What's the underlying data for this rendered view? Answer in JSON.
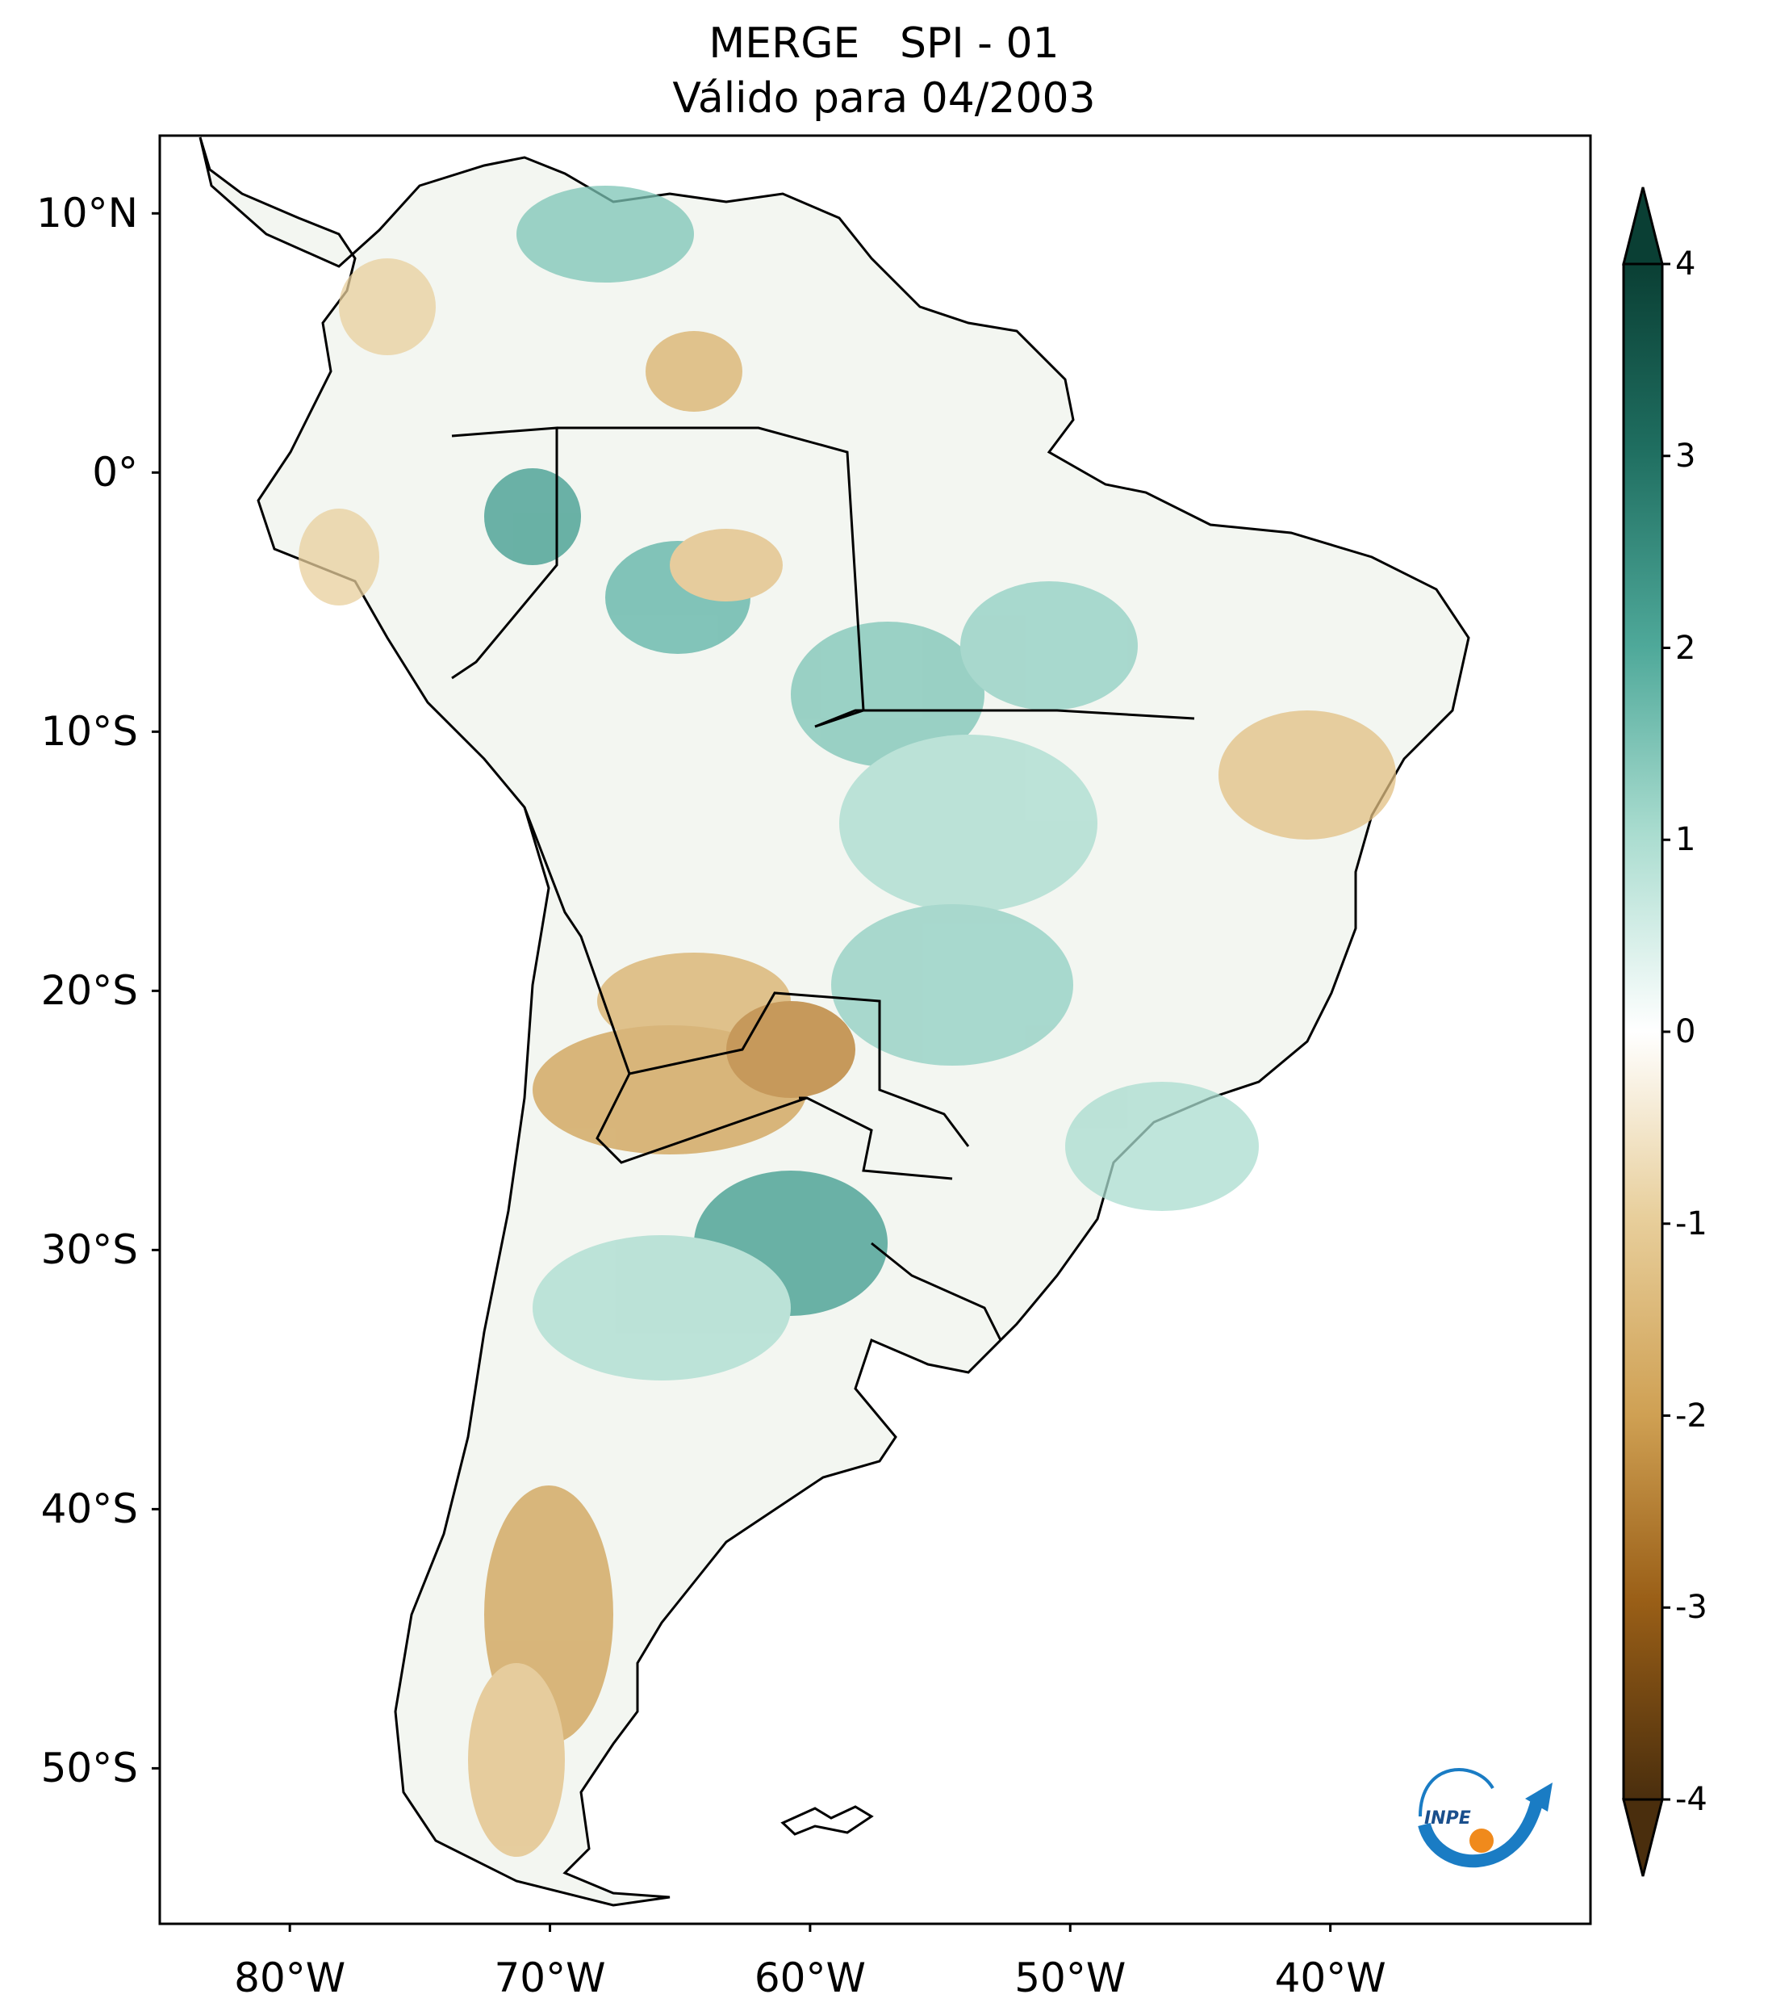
{
  "header": {
    "title_line1": "MERGE   SPI - 01",
    "title_line2": "Válido para 04/2003"
  },
  "map": {
    "extent": {
      "lon_min": -85,
      "lon_max": -30,
      "lat_min": -56,
      "lat_max": 13
    },
    "lat_labels": [
      "10°N",
      "0°",
      "10°S",
      "20°S",
      "30°S",
      "40°S",
      "50°S"
    ],
    "lat_values": [
      10,
      0,
      -10,
      -20,
      -30,
      -40,
      -50
    ],
    "lon_labels": [
      "80°W",
      "70°W",
      "60°W",
      "50°W",
      "40°W"
    ],
    "lon_values": [
      -80,
      -70,
      -60,
      -50,
      -40
    ]
  },
  "colorbar": {
    "labels": [
      "4",
      "3",
      "2",
      "1",
      "0",
      "-1",
      "-2",
      "-3",
      "-4"
    ],
    "values": [
      4,
      3,
      2,
      1,
      0,
      -1,
      -2,
      -3,
      -4
    ],
    "colors": {
      "max": "#0a3f34",
      "high": "#2e8f80",
      "mid_high": "#a9dccf",
      "neutral": "#ffffff",
      "mid_low": "#e8cf9c",
      "low": "#b87a2a",
      "min": "#4a2e0d"
    }
  },
  "logo": {
    "text": "INPE"
  }
}
